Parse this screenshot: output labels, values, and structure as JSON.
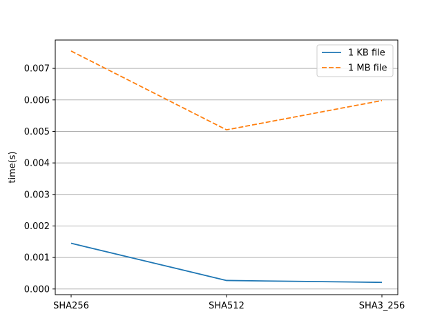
{
  "chart_data": {
    "type": "line",
    "title": "",
    "xlabel": "",
    "ylabel": "time(s)",
    "categories": [
      "SHA256",
      "SHA512",
      "SHA3_256"
    ],
    "series": [
      {
        "name": "1 KB file",
        "values": [
          0.00145,
          0.00027,
          0.00021
        ],
        "color": "#1f77b4",
        "style": "solid"
      },
      {
        "name": "1 MB file",
        "values": [
          0.00755,
          0.00505,
          0.00598
        ],
        "color": "#ff7f0e",
        "style": "dashed"
      }
    ],
    "ylim": [
      -0.00018,
      0.0079
    ],
    "yticks": [
      "0.000",
      "0.001",
      "0.002",
      "0.003",
      "0.004",
      "0.005",
      "0.006",
      "0.007"
    ],
    "grid": "y",
    "legend_position": "top-right"
  }
}
